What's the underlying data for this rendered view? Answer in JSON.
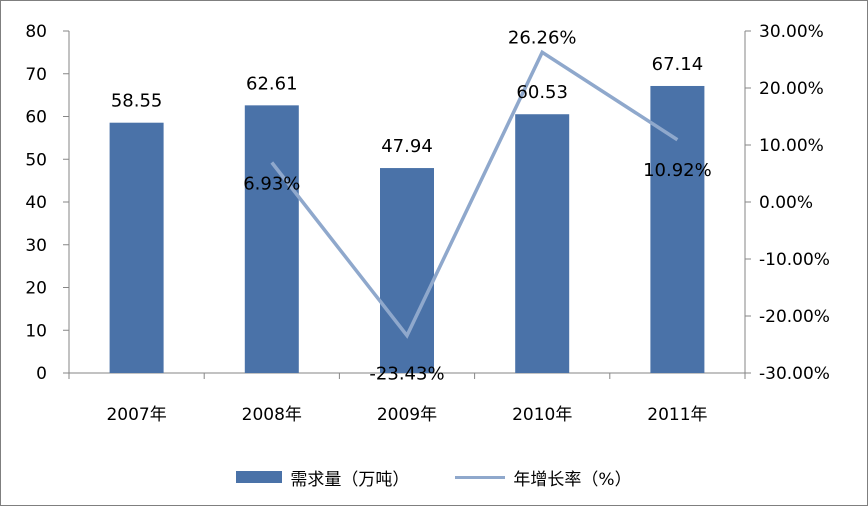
{
  "chart_data": {
    "type": "bar",
    "categories": [
      "2007年",
      "2008年",
      "2009年",
      "2010年",
      "2011年"
    ],
    "series": [
      {
        "name": "需求量（万吨）",
        "type": "bar",
        "axis": "left",
        "values": [
          58.55,
          62.61,
          47.94,
          60.53,
          67.14
        ],
        "labels": [
          "58.55",
          "62.61",
          "47.94",
          "60.53",
          "67.14"
        ],
        "color": "#4a72a8"
      },
      {
        "name": "年增长率（%）",
        "type": "line",
        "axis": "right",
        "values": [
          null,
          6.93,
          -23.43,
          26.26,
          10.92
        ],
        "labels": [
          "",
          "6.93%",
          "-23.43%",
          "26.26%",
          "10.92%"
        ],
        "color": "#8fa8cc"
      }
    ],
    "y_left": {
      "ylim": [
        0,
        80
      ],
      "ticks": [
        "0",
        "10",
        "20",
        "30",
        "40",
        "50",
        "60",
        "70",
        "80"
      ]
    },
    "y_right": {
      "ylim": [
        -30,
        30
      ],
      "ticks": [
        "-30.00%",
        "-20.00%",
        "-10.00%",
        "0.00%",
        "10.00%",
        "20.00%",
        "30.00%"
      ]
    },
    "grid": false,
    "legend": "bottom"
  }
}
